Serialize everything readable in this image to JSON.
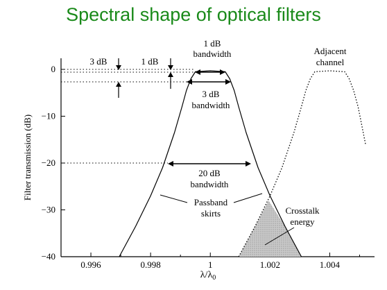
{
  "slide": {
    "title": "Spectral shape of optical filters"
  },
  "chart_data": {
    "type": "line",
    "title": "Spectral shape of optical filters",
    "xlabel": "λ/λ0",
    "ylabel": "Filter transmission (dB)",
    "xlim": [
      0.995,
      1.0055
    ],
    "ylim": [
      -40,
      0
    ],
    "x_ticks": [
      0.996,
      0.998,
      1,
      1.002,
      1.004
    ],
    "x_tick_labels": [
      "0.996",
      "0.998",
      "1",
      "1.002",
      "1.004"
    ],
    "y_ticks": [
      0,
      -10,
      -20,
      -30,
      -40
    ],
    "y_tick_labels": [
      "0",
      "−10",
      "−20",
      "−30",
      "−40"
    ],
    "grid": false,
    "series": [
      {
        "x": [
          0.99695,
          0.9975,
          0.998,
          0.9984,
          0.9988,
          0.99905,
          0.9992,
          0.99935,
          0.9995,
          1.0,
          1.0005,
          1.00065,
          1.0008,
          1.00095,
          1.0012,
          1.0016,
          1.002,
          1.0025,
          1.00305
        ],
        "y": [
          -40,
          -33.5,
          -27,
          -21,
          -13.5,
          -8,
          -4.5,
          -2,
          -0.5,
          -0.3,
          -0.5,
          -2,
          -4.5,
          -8,
          -13.5,
          -21,
          -27,
          -33.5,
          -40
        ],
        "style": "solid"
      },
      {
        "x": [
          1.00095,
          1.0015,
          1.002,
          1.0024,
          1.0028,
          1.00305,
          1.0032,
          1.00335,
          1.0035,
          1.004,
          1.0045,
          1.00465,
          1.0048,
          1.00495,
          1.0052
        ],
        "y": [
          -40,
          -33.5,
          -27,
          -21,
          -13.5,
          -8,
          -4.5,
          -2,
          -0.5,
          -0.3,
          -0.5,
          -2,
          -4.5,
          -8,
          -16
        ],
        "style": "dotted"
      }
    ],
    "shaded_region": {
      "x": [
        1.00095,
        1.0015,
        1.00195,
        1.0025,
        1.00305
      ],
      "y": [
        -40,
        -33.5,
        -28,
        -33.5,
        -40
      ]
    },
    "annotations": {
      "bw1_l1": "1 dB",
      "bw1_l2": "bandwidth",
      "bw3_l1": "3 dB",
      "bw3_l2": "bandwidth",
      "bw20_l1": "20 dB",
      "bw20_l2": "bandwidth",
      "db3": "3 dB",
      "db1": "1 dB",
      "adj_l1": "Adjacent",
      "adj_l2": "channel",
      "pass_l1": "Passband",
      "pass_l2": "skirts",
      "xtalk_l1": "Crosstalk",
      "xtalk_l2": "energy"
    }
  }
}
